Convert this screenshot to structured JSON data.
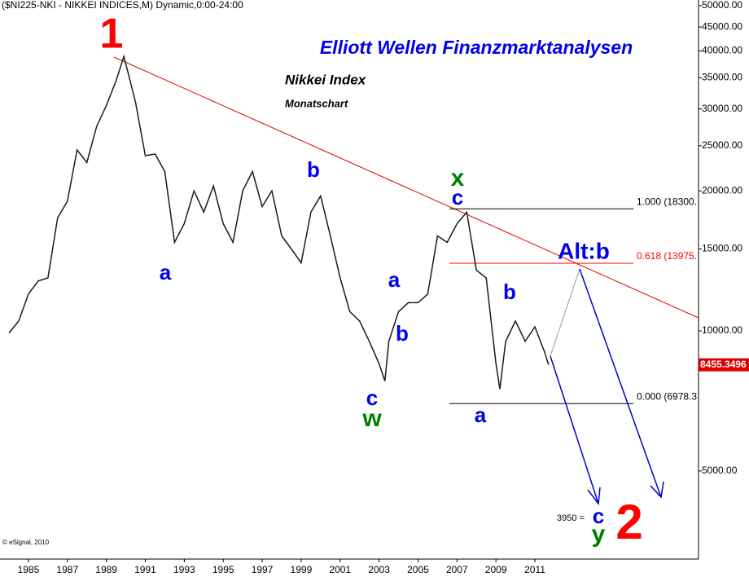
{
  "chart_data": {
    "type": "line",
    "header": "($NI225-NKI - NIKKEI INDICES,M) Dynamic,0:00-24:00",
    "title": "Elliott Wellen Finanzmarktanalysen",
    "subtitle": "Nikkei Index",
    "subtitle2": "Monatschart",
    "credit": "© eSignal, 2010",
    "log_scale": true,
    "x": [
      1984.0,
      1984.5,
      1985.0,
      1985.5,
      1986.0,
      1986.5,
      1987.0,
      1987.5,
      1988.0,
      1988.5,
      1989.0,
      1989.5,
      1989.9,
      1990.5,
      1991.0,
      1991.5,
      1992.0,
      1992.5,
      1993.0,
      1993.5,
      1994.0,
      1994.5,
      1995.0,
      1995.5,
      1996.0,
      1996.5,
      1997.0,
      1997.5,
      1998.0,
      1998.5,
      1999.0,
      1999.5,
      2000.0,
      2000.5,
      2001.0,
      2001.5,
      2002.0,
      2002.5,
      2003.0,
      2003.3,
      2003.5,
      2004.0,
      2004.5,
      2005.0,
      2005.5,
      2006.0,
      2006.5,
      2007.0,
      2007.5,
      2008.0,
      2008.5,
      2009.0,
      2009.2,
      2009.5,
      2010.0,
      2010.5,
      2011.0,
      2011.5,
      2011.7
    ],
    "series": [
      {
        "name": "Nikkei",
        "color": "#1a1a1a",
        "values": [
          9900,
          10500,
          12000,
          12800,
          13000,
          17500,
          19000,
          24500,
          23000,
          27500,
          30500,
          34500,
          38900,
          31000,
          23800,
          24000,
          22000,
          15500,
          17000,
          20000,
          18000,
          20500,
          17000,
          15500,
          20000,
          22000,
          18500,
          20000,
          16000,
          15000,
          14000,
          18000,
          19500,
          16000,
          13000,
          11000,
          10500,
          9500,
          8500,
          7800,
          9500,
          11000,
          11500,
          11500,
          12000,
          16000,
          15500,
          17000,
          18000,
          13500,
          13000,
          8500,
          7500,
          9500,
          10500,
          9500,
          10200,
          9000,
          8455
        ]
      }
    ],
    "xlim": [
      1983.54,
      2019.4
    ],
    "xticks": [
      1985,
      1987,
      1989,
      1991,
      1993,
      1995,
      1997,
      1999,
      2001,
      2003,
      2005,
      2007,
      2009,
      2011
    ],
    "ylim": [
      3233,
      51430
    ],
    "yticks": [
      {
        "value": 50000,
        "label": "50000.00"
      },
      {
        "value": 45000,
        "label": "45000.00"
      },
      {
        "value": 40000,
        "label": "40000.00"
      },
      {
        "value": 35000,
        "label": "35000.00"
      },
      {
        "value": 30000,
        "label": "30000.00"
      },
      {
        "value": 25000,
        "label": "25000.00"
      },
      {
        "value": 20000,
        "label": "20000.00"
      },
      {
        "value": 15000,
        "label": "15000.00"
      },
      {
        "value": 10000,
        "label": "10000.00"
      },
      {
        "value": 5000,
        "label": "5000.00"
      }
    ],
    "last_price": {
      "value": 8455.3496,
      "label": "8455.3496"
    },
    "levels": [
      {
        "value": 18300,
        "label": "1.000 (18300.",
        "color": "#000000"
      },
      {
        "value": 13975,
        "label": "0.618 (13975.",
        "color": "#ff0000"
      },
      {
        "value": 6978.3,
        "label": "0.000 (6978.3",
        "color": "#000000"
      }
    ],
    "target": {
      "value": 3950,
      "label": "3950 ="
    },
    "annotations": [
      {
        "text": "1",
        "color": "#ff0000"
      },
      {
        "text": "a",
        "color": "#0000ee"
      },
      {
        "text": "b",
        "color": "#0000ee"
      },
      {
        "text": "c",
        "color": "#0000ee"
      },
      {
        "text": "w",
        "color": "#008000"
      },
      {
        "text": "a",
        "color": "#0000ee"
      },
      {
        "text": "b",
        "color": "#0000ee"
      },
      {
        "text": "x",
        "color": "#008000"
      },
      {
        "text": "c",
        "color": "#0000ee"
      },
      {
        "text": "Alt:b",
        "color": "#0000ee"
      },
      {
        "text": "b",
        "color": "#0000ee"
      },
      {
        "text": "a",
        "color": "#0000ee"
      },
      {
        "text": "c",
        "color": "#0000ee"
      },
      {
        "text": "y",
        "color": "#008000"
      },
      {
        "text": "2",
        "color": "#ff0000"
      }
    ]
  }
}
